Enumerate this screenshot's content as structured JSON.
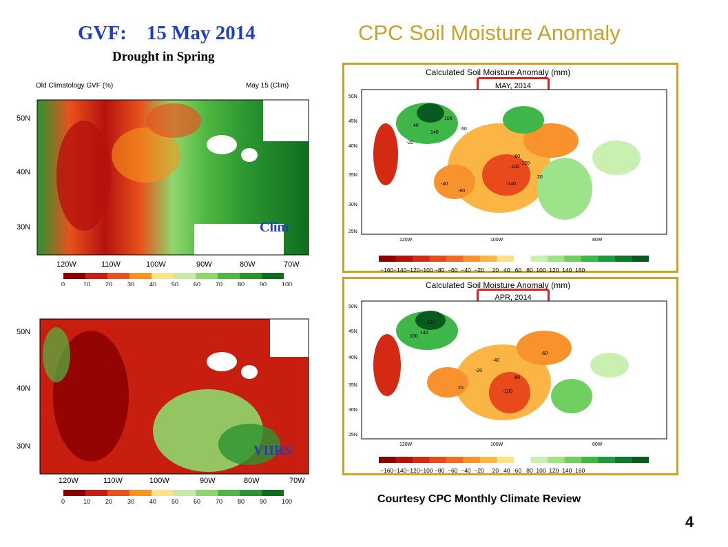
{
  "header": {
    "gvf_title": "GVF:    15 May 2014",
    "gvf_subtitle": "Drought in Spring",
    "cpc_title": "CPC Soil Moisture Anomaly"
  },
  "gvf_maps": {
    "top": {
      "title_left": "Old Climatology GVF (%)",
      "title_right": "May 15 (Clim)",
      "label": "Clim"
    },
    "bottom": {
      "label": "VIIRS"
    },
    "lat_ticks": [
      "50N",
      "40N",
      "30N"
    ],
    "lon_ticks": [
      "120W",
      "110W",
      "100W",
      "90W",
      "80W",
      "70W"
    ],
    "colorbar_ticks": [
      "0",
      "10",
      "20",
      "30",
      "40",
      "50",
      "60",
      "70",
      "80",
      "90",
      "100"
    ],
    "colorbar_colors": [
      "#8b0000",
      "#c81e10",
      "#e8521c",
      "#f7941d",
      "#fde28a",
      "#c8eaa8",
      "#8fd66d",
      "#4fb842",
      "#2a9430",
      "#0e6e1e"
    ]
  },
  "soil_maps": {
    "title": "Calculated Soil Moisture Anomaly (mm)",
    "top_month": "MAY, 2014",
    "bottom_month": "APR, 2014",
    "lat_ticks": [
      "50N",
      "45N",
      "40N",
      "35N",
      "30N",
      "25N"
    ],
    "lon_ticks": [
      "120W",
      "100W",
      "80W"
    ],
    "colorbar_labels": "−160−140−120−100 −80  −60  −40  −20     20   40   60   80  100  120  140  160",
    "colorbar_colors": [
      "#8b0000",
      "#b5120e",
      "#d42a14",
      "#e84a1c",
      "#f26b22",
      "#f7922c",
      "#fbb545",
      "#fde08a",
      "#ffffff",
      "#c9f0b0",
      "#9de38a",
      "#6fd060",
      "#3fb648",
      "#1f9a38",
      "#0f7a2a",
      "#085a1e"
    ],
    "top_contours": [
      "40",
      "100",
      "140",
      "60",
      "-20",
      "-40",
      "-60",
      "-80",
      "-100",
      "-120",
      "-140",
      "20"
    ],
    "bottom_contours": [
      "120",
      "140",
      "100",
      "-40",
      "-20",
      "20",
      "-80",
      "-100",
      "-60"
    ]
  },
  "footer": {
    "courtesy": "Courtesy CPC Monthly Climate Review",
    "page_number": "4"
  }
}
